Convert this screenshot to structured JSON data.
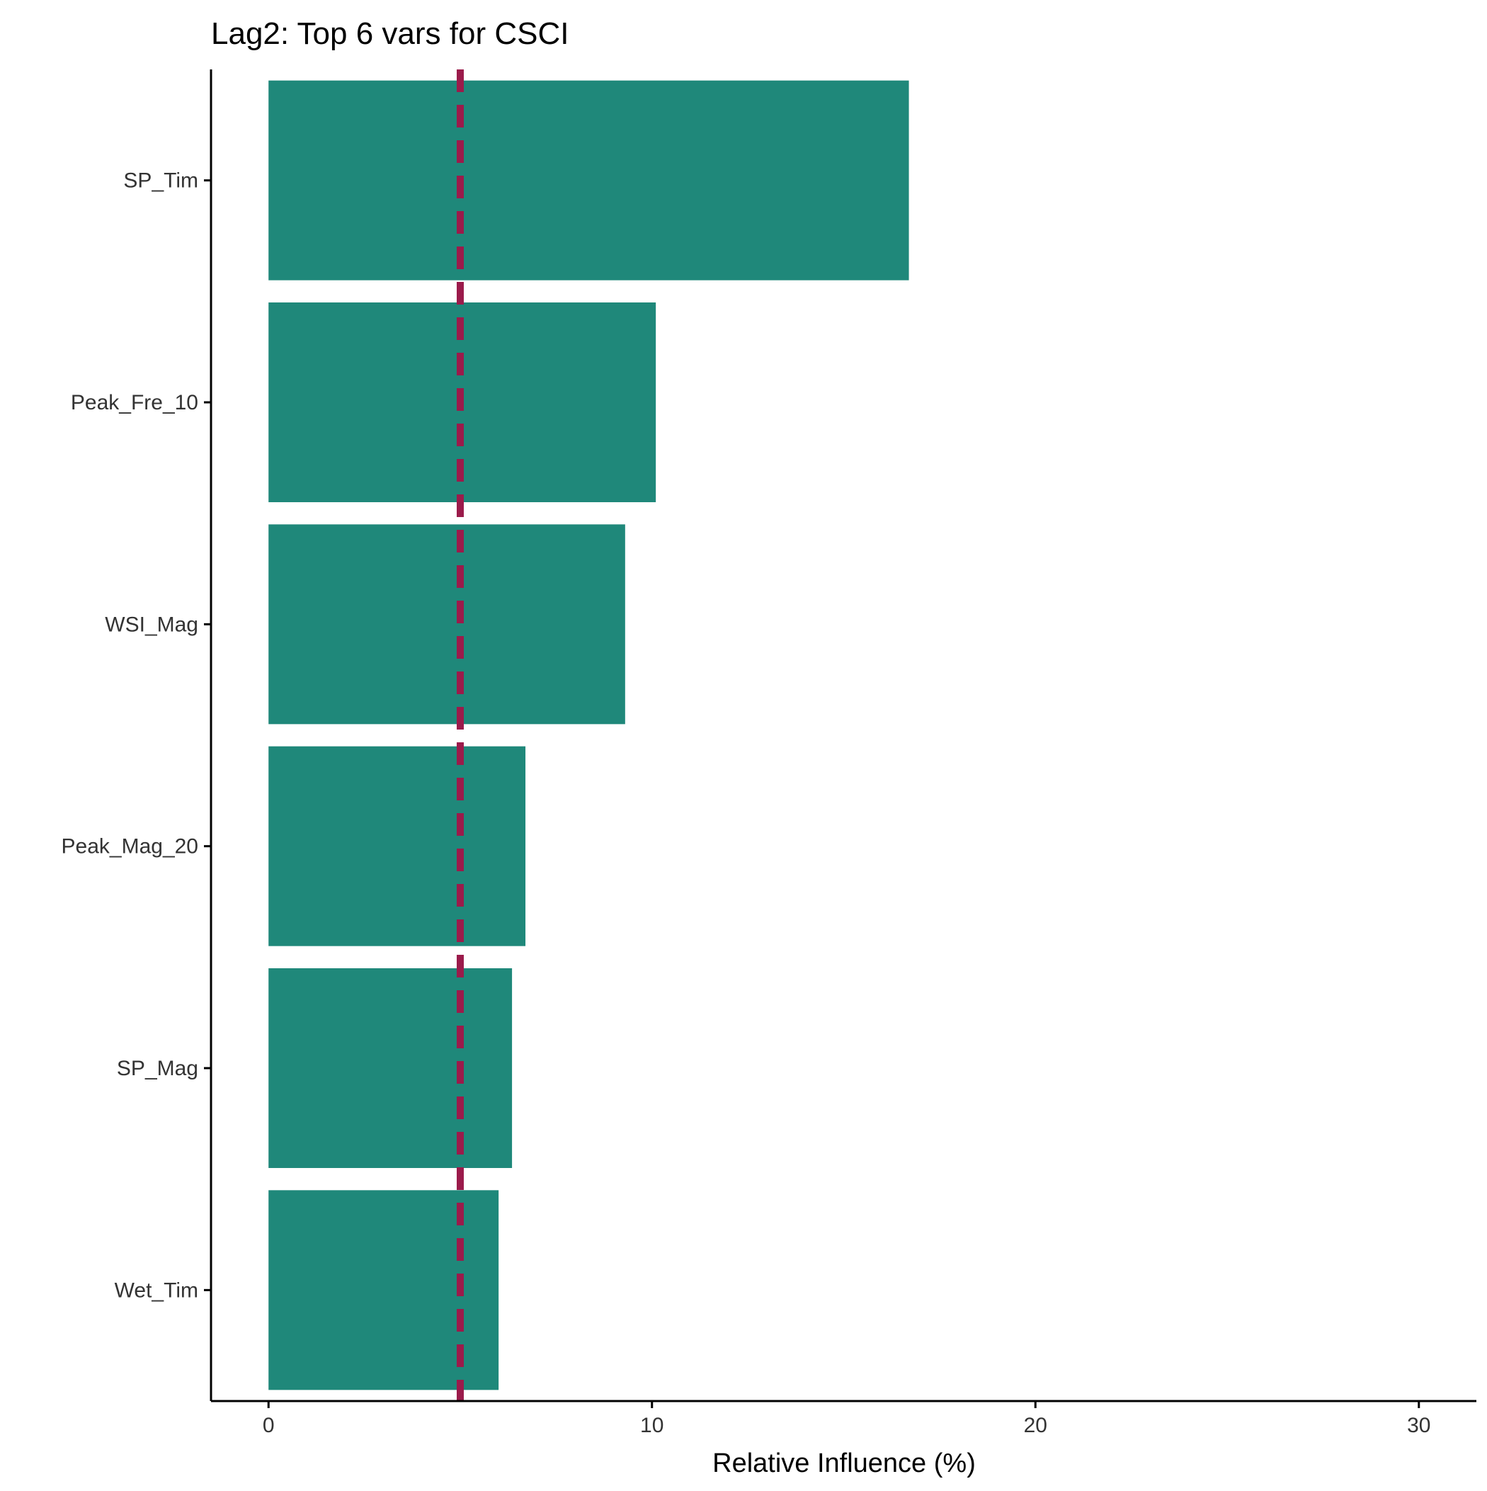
{
  "chart_data": {
    "type": "bar",
    "orientation": "horizontal",
    "title": "Lag2: Top 6 vars for CSCI",
    "xlabel": "Relative Influence (%)",
    "ylabel": "",
    "categories": [
      "SP_Tim",
      "Peak_Fre_10",
      "WSI_Mag",
      "Peak_Mag_20",
      "SP_Mag",
      "Wet_Tim"
    ],
    "values": [
      16.7,
      10.1,
      9.3,
      6.7,
      6.35,
      6.0
    ],
    "xlim": [
      -1.5,
      31.5
    ],
    "x_ticks": [
      0,
      10,
      20,
      30
    ],
    "x_tick_labels": [
      "0",
      "10",
      "20",
      "30"
    ],
    "reference_line": {
      "value": 5,
      "style": "dashed"
    },
    "grid": false,
    "legend": "none",
    "colors": {
      "bar": "#1f887a",
      "reference_line": "#9b1b4b",
      "axis": "#000000"
    }
  }
}
